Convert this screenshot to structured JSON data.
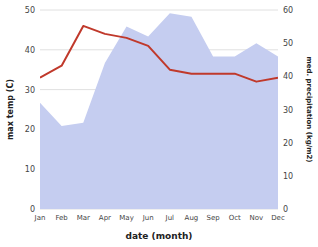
{
  "chart_data": {
    "type": "line",
    "x_label": "date (month)",
    "y_label": "max temp (C)",
    "y2_label": "med. precipitation (kg/m2)",
    "categories": [
      "Jan",
      "Feb",
      "Mar",
      "Apr",
      "May",
      "Jun",
      "Jul",
      "Aug",
      "Sep",
      "Oct",
      "Nov",
      "Dec"
    ],
    "series": [
      {
        "type": "area",
        "axis": "y2",
        "color": "#c5cdf0",
        "values": [
          32,
          25,
          26,
          44,
          55,
          52,
          59,
          58,
          46,
          46,
          50,
          46
        ]
      },
      {
        "type": "line",
        "color": "#c0392b",
        "values": [
          33,
          36,
          46,
          44,
          43,
          41,
          35,
          34,
          34,
          34,
          32,
          33
        ]
      }
    ],
    "ylim": [
      0,
      50
    ],
    "yticks": [
      0,
      10,
      20,
      30,
      40,
      50
    ],
    "y2lim": [
      0,
      60
    ],
    "y2ticks": [
      0,
      10,
      20,
      30,
      40,
      50,
      60
    ],
    "grid": true
  }
}
